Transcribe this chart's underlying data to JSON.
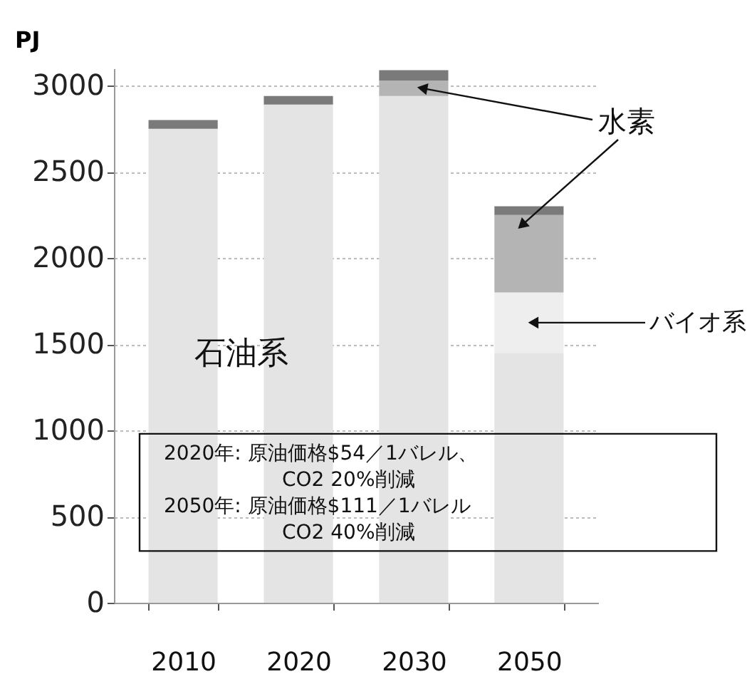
{
  "chart_data": {
    "type": "bar",
    "stacked": true,
    "ylabel": "PJ",
    "categories": [
      "2010",
      "2020",
      "2030",
      "2050"
    ],
    "series": [
      {
        "color": "#e4e4e4",
        "values": [
          2750,
          2890,
          2940,
          1450
        ]
      },
      {
        "color": "#eeeeee",
        "values": [
          0,
          0,
          0,
          350
        ]
      },
      {
        "color": "#b4b4b4",
        "values": [
          0,
          0,
          90,
          450
        ]
      },
      {
        "color": "#7a7a7a",
        "values": [
          50,
          50,
          60,
          50
        ]
      }
    ],
    "ylim": [
      0,
      3100
    ],
    "yticks": [
      0,
      500,
      1000,
      1500,
      2000,
      2500,
      3000
    ],
    "grid": "y",
    "legend": false,
    "annotations": [
      "石油系",
      {
        "text": "水素",
        "x": "2030",
        "y": 2985
      },
      "バイオ系",
      "2020年:  原油価格$54／1バレル、",
      "CO2  20%削減",
      "2050年:  原油価格$111／1バレル",
      "CO2  40%削減"
    ]
  }
}
